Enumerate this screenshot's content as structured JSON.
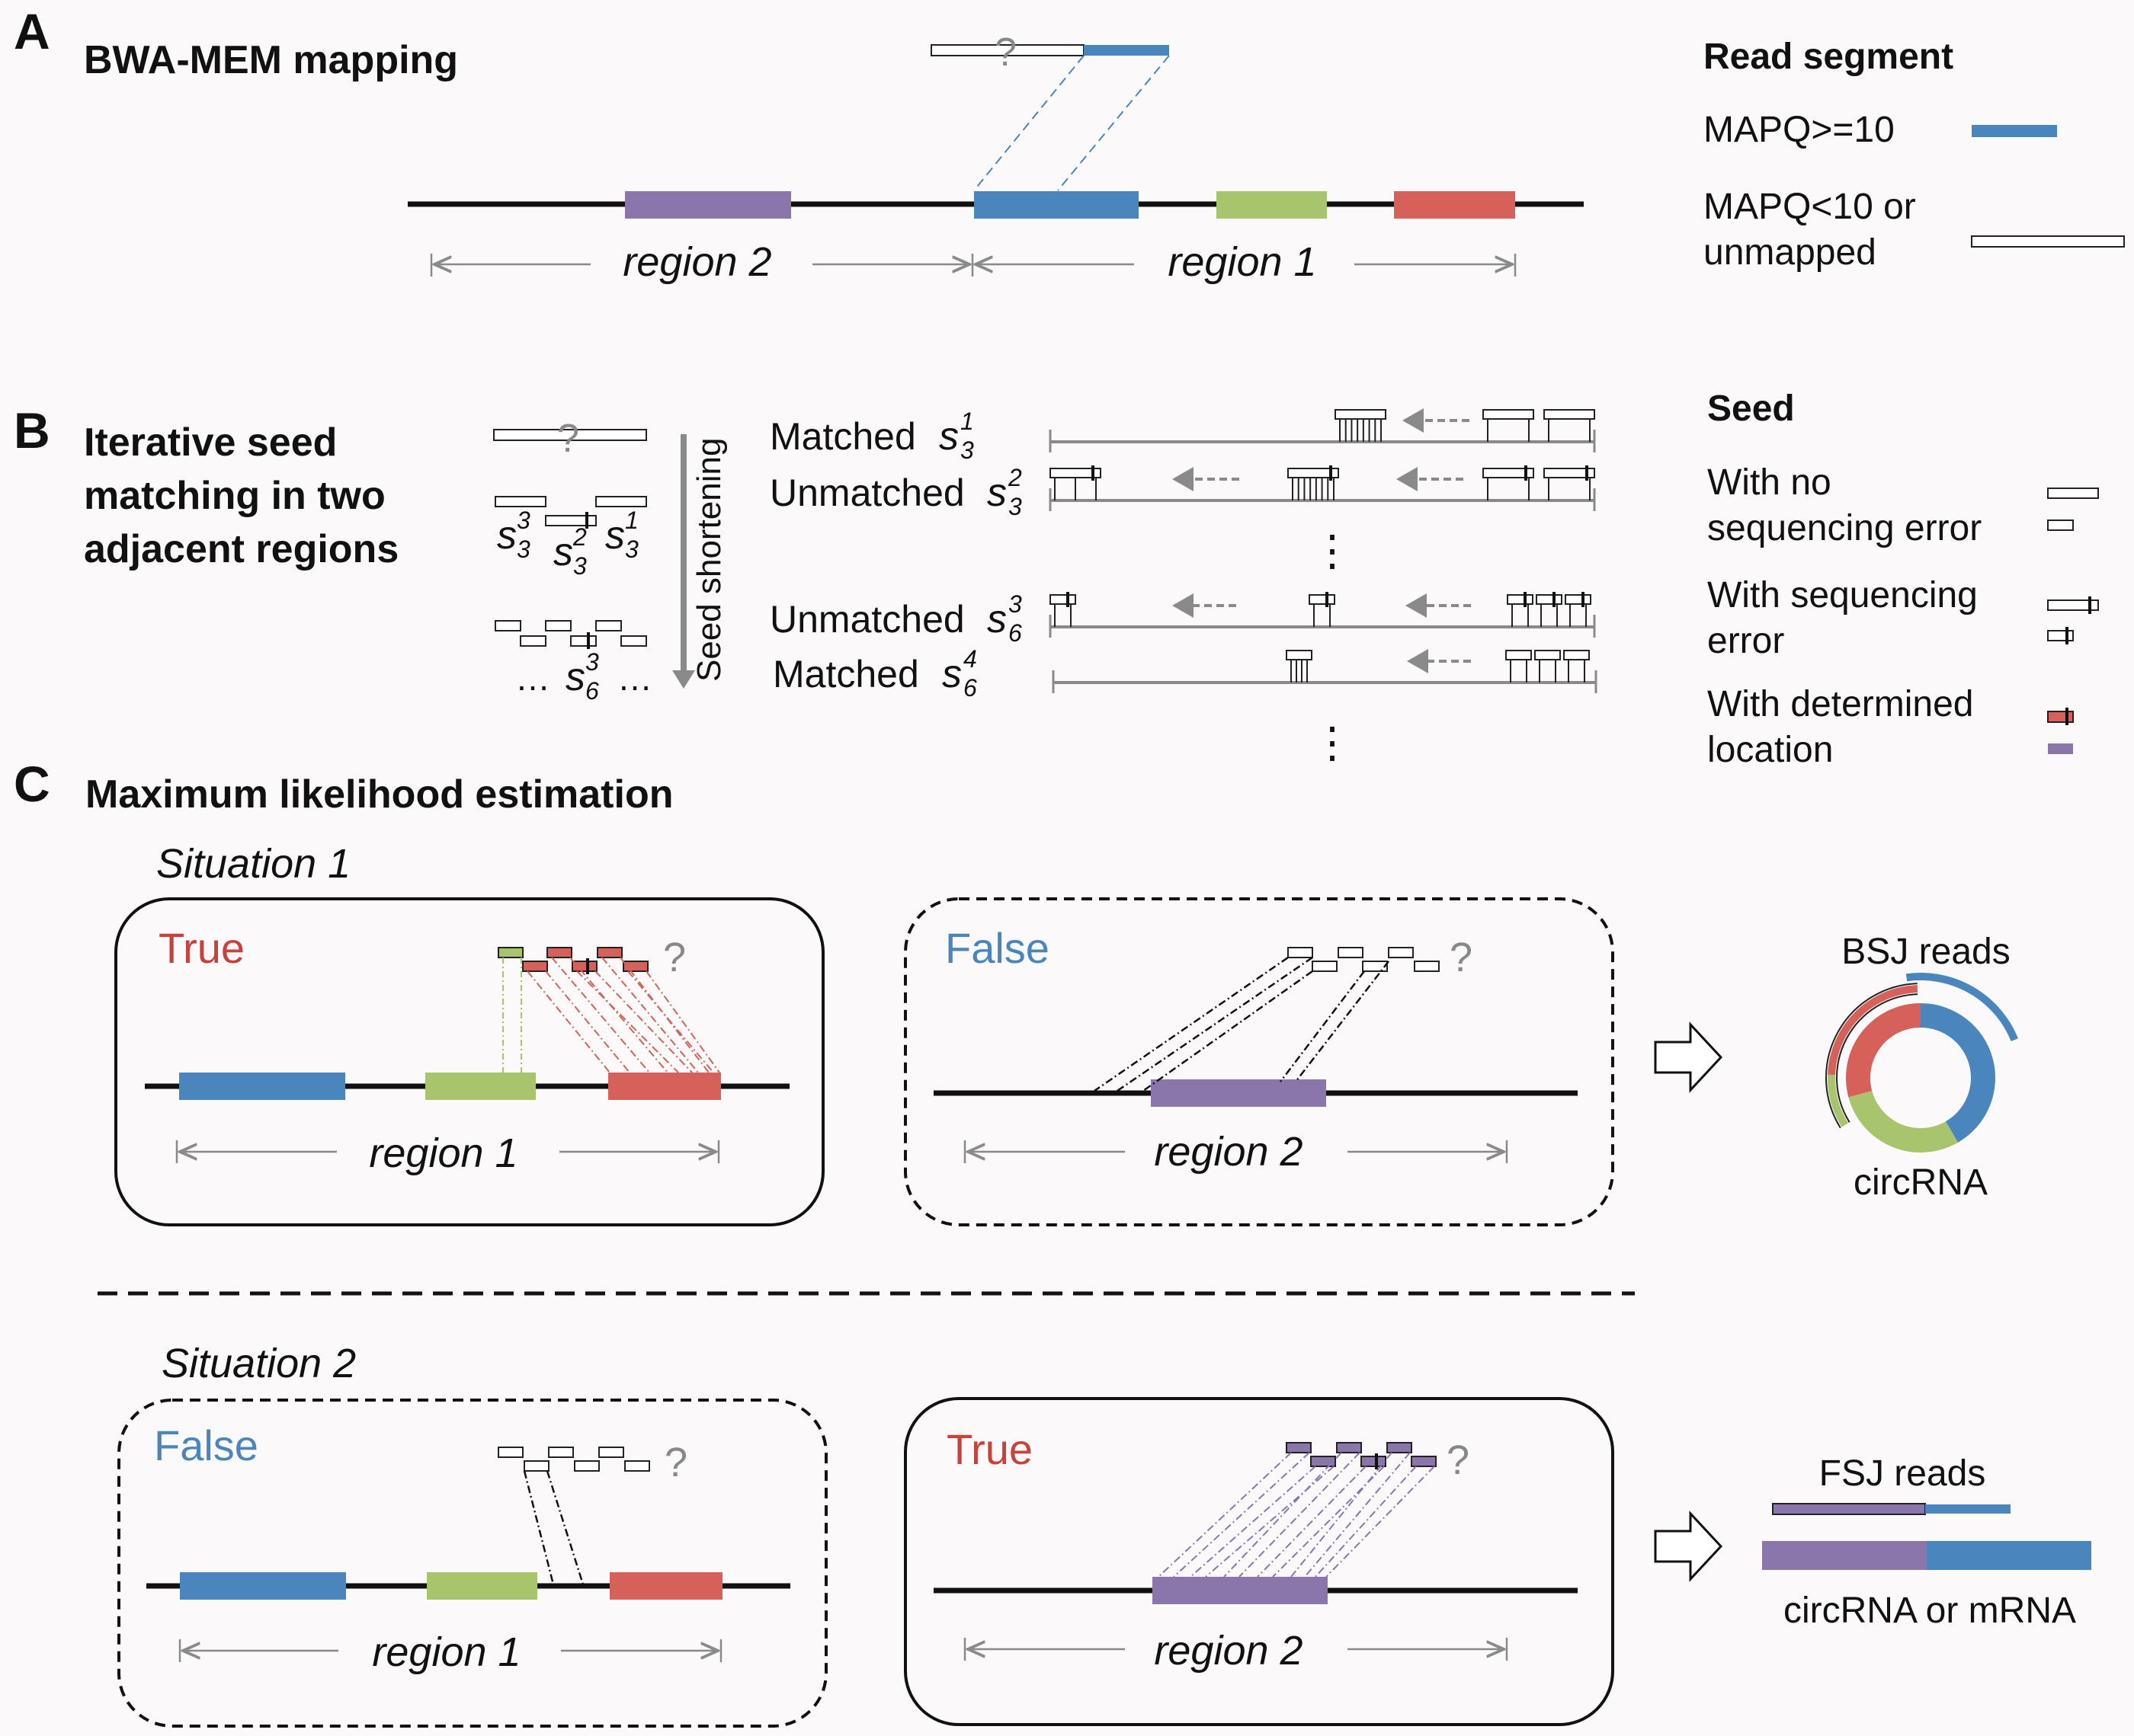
{
  "panels": {
    "a": {
      "letter": "A",
      "title": "BWA-MEM mapping"
    },
    "b": {
      "letter": "B",
      "title_lines": [
        "Iterative seed",
        "matching in two",
        "adjacent regions"
      ]
    },
    "c": {
      "letter": "C",
      "title": "Maximum likelihood estimation"
    }
  },
  "labels": {
    "region1": "region 1",
    "region2": "region 2",
    "question": "?",
    "seed_shortening": "Seed shortening",
    "ellipsis": "⋮",
    "dots": "…"
  },
  "seed_rows": [
    {
      "status": "Matched",
      "s": "s",
      "sub": "3",
      "sup": "1"
    },
    {
      "status": "Unmatched",
      "s": "s",
      "sub": "3",
      "sup": "2"
    },
    {
      "status": "Unmatched",
      "s": "s",
      "sub": "6",
      "sup": "3"
    },
    {
      "status": "Matched",
      "s": "s",
      "sub": "6",
      "sup": "4"
    }
  ],
  "seed_glyphs": [
    {
      "s": "s",
      "sub": "3",
      "sup": "3"
    },
    {
      "s": "s",
      "sub": "3",
      "sup": "2"
    },
    {
      "s": "s",
      "sub": "3",
      "sup": "1"
    },
    {
      "s": "s",
      "sub": "6",
      "sup": "3"
    }
  ],
  "legend_read": {
    "title": "Read segment",
    "items": [
      {
        "label_lines": [
          "MAPQ>=10"
        ],
        "color": "#4a86bd"
      },
      {
        "label_lines": [
          "MAPQ<10 or",
          "unmapped"
        ],
        "color": "#ffffff"
      }
    ]
  },
  "legend_seed": {
    "title": "Seed",
    "items": [
      {
        "label_lines": [
          "With no",
          "sequencing error"
        ]
      },
      {
        "label_lines": [
          "With sequencing",
          "error"
        ]
      },
      {
        "label_lines": [
          "With determined",
          "location"
        ]
      }
    ]
  },
  "situations": [
    {
      "title": "Situation 1",
      "boxes": [
        {
          "verdict": "True",
          "verdict_color": "#c8413b",
          "region": "region 1"
        },
        {
          "verdict": "False",
          "verdict_color": "#4a86bd",
          "region": "region 2"
        }
      ],
      "result_title": "BSJ reads",
      "result_caption": "circRNA"
    },
    {
      "title": "Situation 2",
      "boxes": [
        {
          "verdict": "False",
          "verdict_color": "#4a86bd",
          "region": "region 1"
        },
        {
          "verdict": "True",
          "verdict_color": "#c8413b",
          "region": "region 2"
        }
      ],
      "result_title": "FSJ reads",
      "result_caption": "circRNA or mRNA"
    }
  ],
  "colors": {
    "purple": "#8b76ab",
    "blue": "#4a86bd",
    "green": "#a8c46c",
    "red": "#d5615a",
    "gray": "#8a8a8a"
  }
}
